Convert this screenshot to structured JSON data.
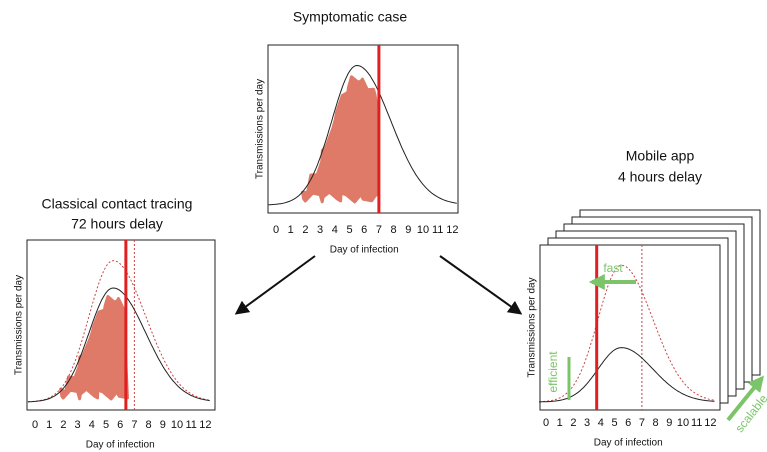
{
  "panels": [
    {
      "title": [
        "Symptomatic case"
      ],
      "y_label": "Transmissions per day",
      "x_label": "Day of infection",
      "x_ticks": [
        0,
        1,
        2,
        3,
        4,
        5,
        6,
        7,
        8,
        9,
        10,
        11,
        12
      ]
    },
    {
      "title": [
        "Classical contact tracing",
        "72 hours delay"
      ],
      "y_label": "Transmissions per day",
      "x_label": "Day of infection",
      "x_ticks": [
        0,
        1,
        2,
        3,
        4,
        5,
        6,
        7,
        8,
        9,
        10,
        11,
        12
      ]
    },
    {
      "title": [
        "Mobile app",
        "4 hours delay"
      ],
      "y_label": "Transmissions per day",
      "x_label": "Day of infection",
      "x_ticks": [
        0,
        1,
        2,
        3,
        4,
        5,
        6,
        7,
        8,
        9,
        10,
        11,
        12
      ],
      "annotations": [
        "fast",
        "efficient",
        "scalable"
      ]
    }
  ]
}
